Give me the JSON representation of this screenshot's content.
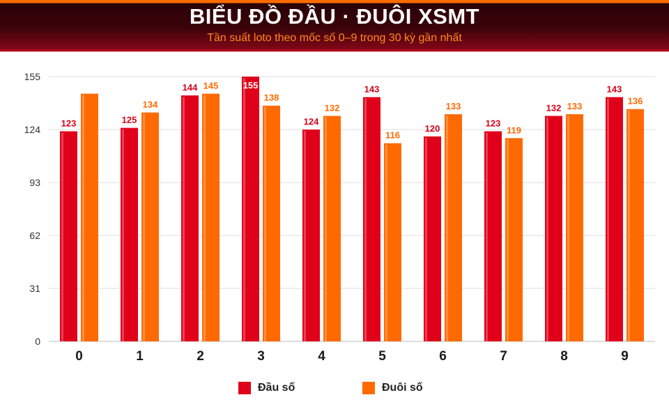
{
  "header": {
    "title": "BIỂU ĐỒ ĐẦU · ĐUÔI XSMT",
    "subtitle": "Tần suất loto theo mốc số 0–9 trong 30 kỳ gần nhất"
  },
  "colors": {
    "dau": "#e0001a",
    "duoi": "#ff6a00",
    "dau_label": "#d40018",
    "duoi_label": "#ff6a00"
  },
  "chart_data": {
    "type": "bar",
    "categories": [
      "0",
      "1",
      "2",
      "3",
      "4",
      "5",
      "6",
      "7",
      "8",
      "9"
    ],
    "series": [
      {
        "name": "Đầu số",
        "values": [
          123,
          125,
          144,
          155,
          124,
          143,
          120,
          123,
          132,
          143
        ]
      },
      {
        "name": "Đuôi số",
        "values": [
          145,
          134,
          145,
          138,
          132,
          116,
          133,
          119,
          133,
          136
        ]
      }
    ],
    "shown_labels": [
      [
        true,
        true,
        true,
        true,
        true,
        true,
        true,
        true,
        true,
        true
      ],
      [
        false,
        true,
        true,
        true,
        true,
        true,
        true,
        true,
        true,
        true
      ]
    ],
    "yticks": [
      0,
      31,
      62,
      93,
      124,
      155
    ],
    "ylim": [
      0,
      155
    ],
    "grid": true,
    "legend_position": "bottom"
  }
}
